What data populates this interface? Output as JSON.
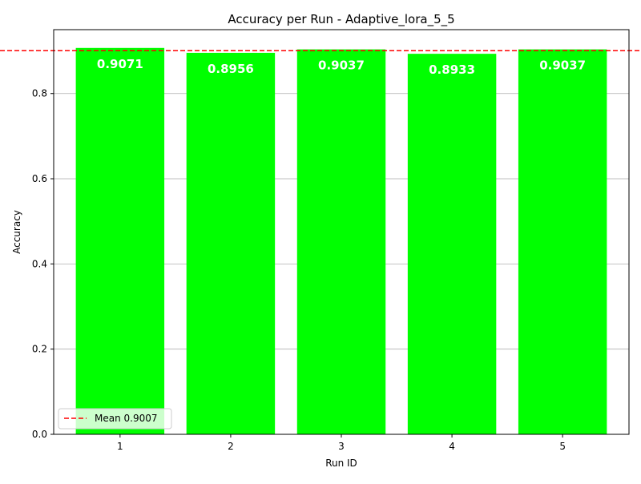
{
  "chart_data": {
    "type": "bar",
    "title": "Accuracy per Run - Adaptive_lora_5_5",
    "xlabel": "Run ID",
    "ylabel": "Accuracy",
    "categories": [
      "1",
      "2",
      "3",
      "4",
      "5"
    ],
    "values": [
      0.9071,
      0.8956,
      0.9037,
      0.8933,
      0.9037
    ],
    "value_labels": [
      "0.9071",
      "0.8956",
      "0.9037",
      "0.8933",
      "0.9037"
    ],
    "ylim": [
      0,
      0.95
    ],
    "yticks": [
      0.0,
      0.2,
      0.4,
      0.6,
      0.8
    ],
    "ytick_labels": [
      "0.0",
      "0.2",
      "0.4",
      "0.6",
      "0.8"
    ],
    "grid": "horizontal",
    "bar_color": "#00ff00",
    "mean_line": {
      "value": 0.9007,
      "label": "Mean 0.9007",
      "color": "#ff0000",
      "style": "dashed"
    },
    "legend_position": "lower-left"
  }
}
